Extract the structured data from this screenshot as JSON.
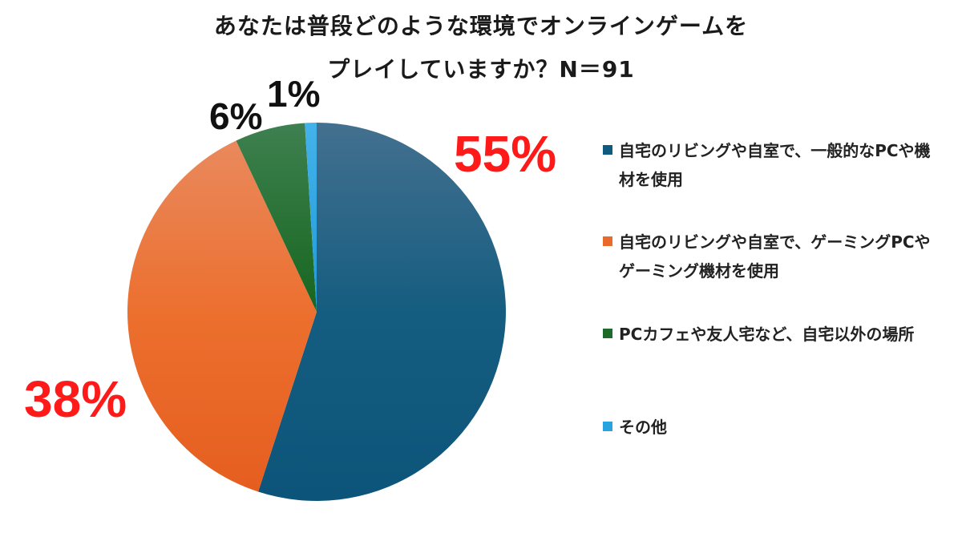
{
  "chart_data": {
    "type": "pie",
    "title_lines": [
      "あなたは普段どのような環境でオンラインゲームを",
      "プレイしていますか？N＝91"
    ],
    "slices": [
      {
        "label": "自宅のリビングや自室で、一般的なPCや機材を使用",
        "value": 55,
        "display": "55%",
        "color": "#0f5a7f",
        "label_color": "#ff1a1a"
      },
      {
        "label": "自宅のリビングや自室で、ゲーミングPCやゲーミング機材を使用",
        "value": 38,
        "display": "38%",
        "color": "#ea6a2a",
        "label_color": "#ff1a1a"
      },
      {
        "label": "PCカフェや友人宅など、自宅以外の場所",
        "value": 6,
        "display": "6%",
        "color": "#1d6b2a",
        "label_color": "#111111"
      },
      {
        "label": "その他",
        "value": 1,
        "display": "1%",
        "color": "#29a3e0",
        "label_color": "#111111"
      }
    ],
    "legend_position": "right"
  }
}
